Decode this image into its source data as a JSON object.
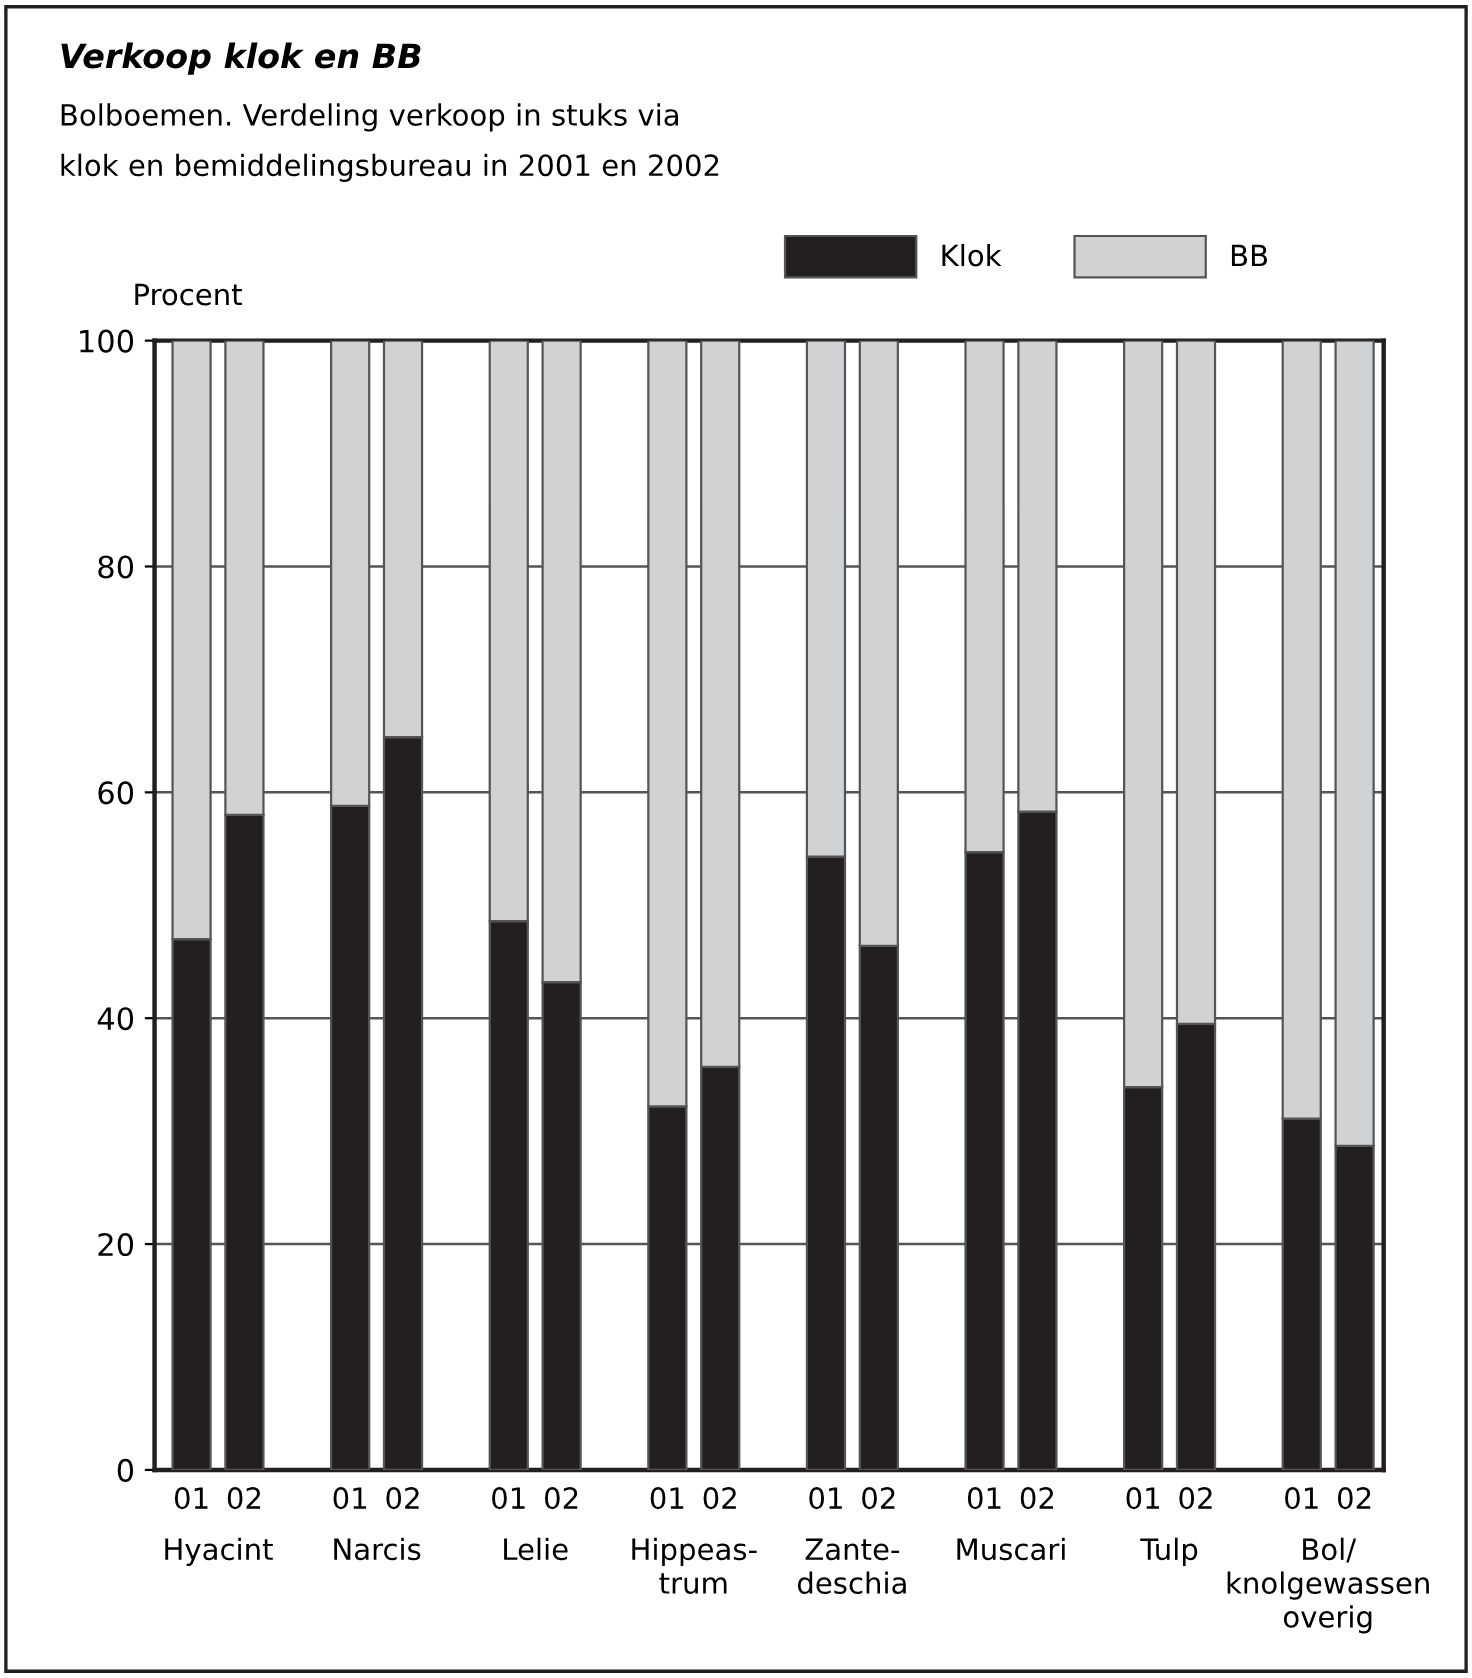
{
  "chart_data": {
    "type": "bar",
    "title": "Verkoop klok en BB",
    "subtitle": "Bolboemen. Verdeling verkoop in stuks via\nklok en bemiddelingsbureau in 2001 en 2002",
    "ylabel": "Procent",
    "categories": [
      "01",
      "02",
      "01",
      "02",
      "01",
      "02",
      "01",
      "02",
      "01",
      "02",
      "01",
      "02",
      "01",
      "02",
      "01",
      "02"
    ],
    "annotations": [
      "Hyacint",
      "Narcis",
      "Lelie",
      "Hippeas-\ntrum",
      "Zante-\ndeschia",
      "Muscari",
      "Tulp",
      "Bol/\nknolgewassen\noverig"
    ],
    "stacked": true,
    "series": [
      {
        "name": "Klok",
        "color": "#231f20",
        "values": [
          47.0,
          58.0,
          58.8,
          64.9,
          48.6,
          43.2,
          32.2,
          35.7,
          54.3,
          46.4,
          54.7,
          58.3,
          33.9,
          39.5,
          31.1,
          28.7
        ]
      },
      {
        "name": "BB",
        "color": "#d1d2d4",
        "values": [
          53.0,
          42.0,
          41.2,
          35.1,
          51.4,
          56.8,
          67.8,
          64.3,
          45.7,
          53.6,
          45.3,
          41.7,
          66.1,
          60.5,
          68.9,
          71.3
        ]
      }
    ],
    "ylim": [
      0,
      100
    ],
    "yticks": [
      0,
      20,
      40,
      60,
      80,
      100
    ],
    "grid": "y",
    "legend": "top right"
  }
}
